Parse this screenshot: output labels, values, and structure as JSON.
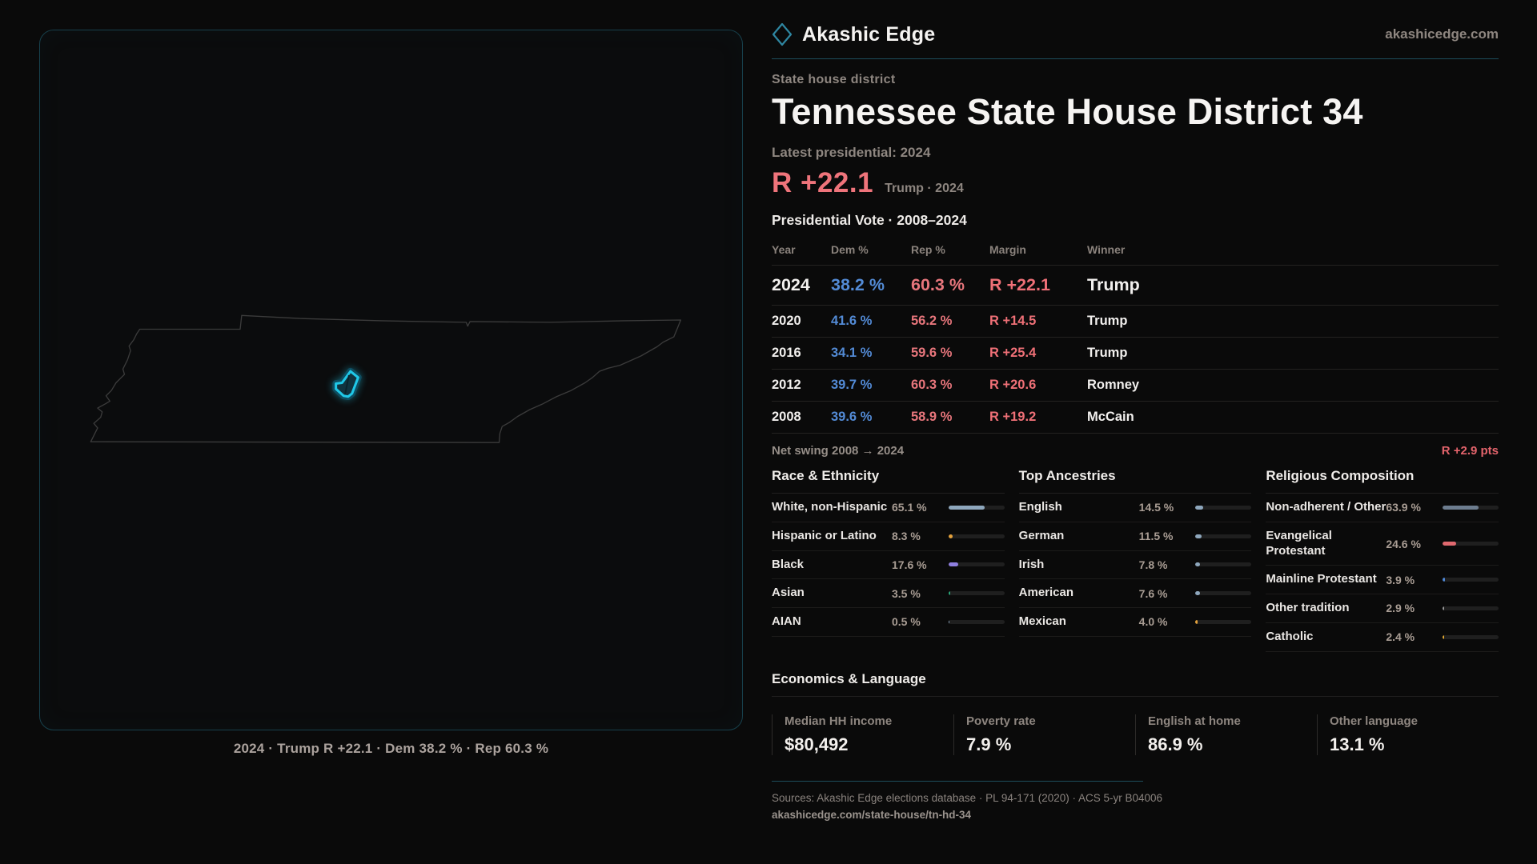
{
  "brand": {
    "name": "Akashic Edge",
    "site": "akashicedge.com"
  },
  "colors": {
    "accent_teal": "#1fc8e8",
    "dem_blue": "#538bd6",
    "rep_red": "#ef7077",
    "bar_track": "#1f1f1f"
  },
  "map": {
    "caption": "2024 · Trump R +22.1 · Dem 38.2 % · Rep 60.3 %"
  },
  "header": {
    "eyebrow": "State house district",
    "title": "Tennessee State House District 34",
    "latest_label": "Latest presidential: 2024",
    "headline_margin": "R +22.1",
    "headline_sub": "Trump · 2024",
    "table_title": "Presidential Vote · 2008–2024"
  },
  "vote_table": {
    "columns": [
      "Year",
      "Dem %",
      "Rep %",
      "Margin",
      "Winner"
    ],
    "rows": [
      {
        "year": "2024",
        "dem": "38.2 %",
        "rep": "60.3 %",
        "margin": "R +22.1",
        "winner": "Trump"
      },
      {
        "year": "2020",
        "dem": "41.6 %",
        "rep": "56.2 %",
        "margin": "R +14.5",
        "winner": "Trump"
      },
      {
        "year": "2016",
        "dem": "34.1 %",
        "rep": "59.6 %",
        "margin": "R +25.4",
        "winner": "Trump"
      },
      {
        "year": "2012",
        "dem": "39.7 %",
        "rep": "60.3 %",
        "margin": "R +20.6",
        "winner": "Romney"
      },
      {
        "year": "2008",
        "dem": "39.6 %",
        "rep": "58.9 %",
        "margin": "R +19.2",
        "winner": "McCain"
      }
    ]
  },
  "net_swing": {
    "label": "Net swing 2008 → 2024",
    "value": "R +2.9 pts"
  },
  "demographics": {
    "sections": [
      {
        "title": "Race & Ethnicity",
        "rows": [
          {
            "label": "White, non-Hispanic",
            "value": "65.1 %",
            "pct": 65.1,
            "color": "#8ea7bd"
          },
          {
            "label": "Hispanic or Latino",
            "value": "8.3 %",
            "pct": 8.3,
            "color": "#e5a23c"
          },
          {
            "label": "Black",
            "value": "17.6 %",
            "pct": 17.6,
            "color": "#8f7fe0"
          },
          {
            "label": "Asian",
            "value": "3.5 %",
            "pct": 3.5,
            "color": "#2aa87a"
          },
          {
            "label": "AIAN",
            "value": "0.5 %",
            "pct": 0.5,
            "color": "#8ea7bd"
          }
        ]
      },
      {
        "title": "Top Ancestries",
        "rows": [
          {
            "label": "English",
            "value": "14.5 %",
            "pct": 14.5,
            "color": "#8ea7bd"
          },
          {
            "label": "German",
            "value": "11.5 %",
            "pct": 11.5,
            "color": "#8ea7bd"
          },
          {
            "label": "Irish",
            "value": "7.8 %",
            "pct": 7.8,
            "color": "#8ea7bd"
          },
          {
            "label": "American",
            "value": "7.6 %",
            "pct": 7.6,
            "color": "#8ea7bd"
          },
          {
            "label": "Mexican",
            "value": "4.0 %",
            "pct": 4.0,
            "color": "#e5a23c"
          }
        ]
      },
      {
        "title": "Religious Composition",
        "rows": [
          {
            "label": "Non-adherent / Other",
            "value": "63.9 %",
            "pct": 63.9,
            "color": "#6d7d8f"
          },
          {
            "label": "Evangelical Protestant",
            "value": "24.6 %",
            "pct": 24.6,
            "color": "#e0696f"
          },
          {
            "label": "Mainline Protestant",
            "value": "3.9 %",
            "pct": 3.9,
            "color": "#4f88d6"
          },
          {
            "label": "Other tradition",
            "value": "2.9 %",
            "pct": 2.9,
            "color": "#9a9a9a"
          },
          {
            "label": "Catholic",
            "value": "2.4 %",
            "pct": 2.4,
            "color": "#e0a832"
          }
        ]
      }
    ]
  },
  "economics": {
    "title": "Economics & Language",
    "stats": [
      {
        "label": "Median HH income",
        "value": "$80,492"
      },
      {
        "label": "Poverty rate",
        "value": "7.9 %"
      },
      {
        "label": "English at home",
        "value": "86.9 %"
      },
      {
        "label": "Other language",
        "value": "13.1 %"
      }
    ]
  },
  "footer": {
    "sources": "Sources: Akashic Edge elections database · PL 94-171 (2020) · ACS 5-yr B04006",
    "permalink": "akashicedge.com/state-house/tn-hd-34"
  }
}
